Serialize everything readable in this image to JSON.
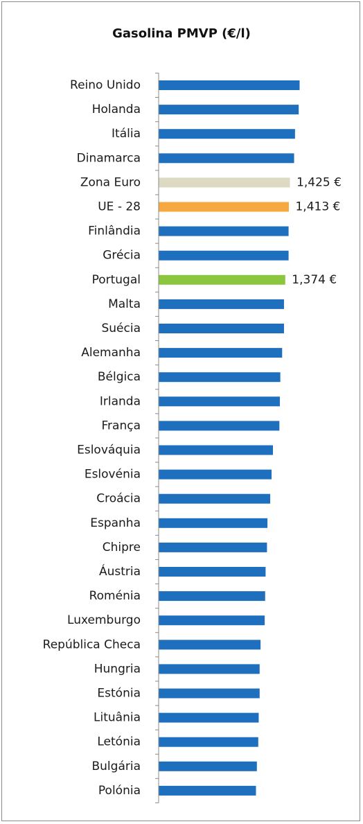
{
  "chart_data": {
    "type": "bar",
    "orientation": "horizontal",
    "title": "Gasolina PMVP (€/l)",
    "xlabel": "",
    "ylabel": "",
    "xlim": [
      0,
      1.68
    ],
    "grid": false,
    "legend": "none",
    "categories": [
      "Reino Unido",
      "Holanda",
      "Itália",
      "Dinamarca",
      "Zona Euro",
      "UE - 28",
      "Finlândia",
      "Grécia",
      "Portugal",
      "Malta",
      "Suécia",
      "Alemanha",
      "Bélgica",
      "Irlanda",
      "França",
      "Eslováquia",
      "Eslovénia",
      "Croácia",
      "Espanha",
      "Chipre",
      "Áustria",
      "Roménia",
      "Luxemburgo",
      "República Checa",
      "Hungria",
      "Estónia",
      "Lituânia",
      "Letónia",
      "Bulgária",
      "Polónia"
    ],
    "values": [
      1.53,
      1.52,
      1.48,
      1.47,
      1.425,
      1.413,
      1.41,
      1.41,
      1.374,
      1.36,
      1.36,
      1.34,
      1.32,
      1.315,
      1.31,
      1.24,
      1.225,
      1.21,
      1.18,
      1.175,
      1.16,
      1.155,
      1.15,
      1.105,
      1.095,
      1.095,
      1.085,
      1.08,
      1.065,
      1.055
    ],
    "data_labels": {
      "4": "1,425 €",
      "5": "1,413 €",
      "8": "1,374 €"
    },
    "colors": {
      "default": "#1f6fbf",
      "highlights": {
        "4": "#ddd9c3",
        "5": "#f7a941",
        "8": "#8cc63f"
      }
    }
  }
}
